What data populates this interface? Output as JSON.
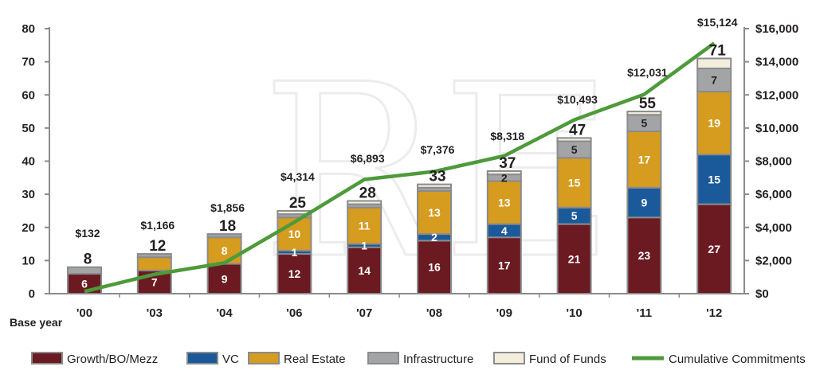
{
  "chart_data": {
    "type": "bar",
    "stacked": true,
    "categories": [
      "'00",
      "'03",
      "'04",
      "'06",
      "'07",
      "'08",
      "'09",
      "'10",
      "'11",
      "'12"
    ],
    "series": [
      {
        "name": "Growth/BO/Mezz",
        "color": "#6b1a22",
        "values": [
          6,
          7,
          9,
          12,
          14,
          16,
          17,
          21,
          23,
          27
        ]
      },
      {
        "name": "VC",
        "color": "#1a5a9a",
        "values": [
          0,
          0,
          0,
          1,
          1,
          2,
          4,
          5,
          9,
          15
        ]
      },
      {
        "name": "Real Estate",
        "color": "#d69c1f",
        "values": [
          0,
          4,
          8,
          10,
          11,
          13,
          13,
          15,
          17,
          19
        ]
      },
      {
        "name": "Infrastructure",
        "color": "#a3a4a6",
        "values": [
          2,
          1,
          1,
          1,
          1,
          1,
          2,
          5,
          5,
          7
        ]
      },
      {
        "name": "Fund of Funds",
        "color": "#f3eedc",
        "values": [
          0,
          0,
          0,
          1,
          1,
          1,
          1,
          1,
          1,
          3
        ]
      }
    ],
    "segment_labels": [
      [
        "6",
        "7",
        "9",
        "12",
        "14",
        "16",
        "17",
        "21",
        "23",
        "27"
      ],
      [
        "",
        "",
        "",
        "1",
        "1",
        "2",
        "4",
        "5",
        "9",
        "15"
      ],
      [
        "",
        "",
        "8",
        "10",
        "11",
        "13",
        "13",
        "15",
        "17",
        "19"
      ],
      [
        "",
        "",
        "",
        "",
        "",
        "",
        "2",
        "5",
        "5",
        "7"
      ],
      [
        "",
        "",
        "",
        "",
        "",
        "",
        "",
        "",
        "",
        ""
      ]
    ],
    "totals": [
      "8",
      "12",
      "18",
      "25",
      "28",
      "33",
      "37",
      "47",
      "55",
      "71"
    ],
    "line": {
      "name": "Cumulative Commitments",
      "color": "#4e9a3a",
      "values": [
        132,
        1166,
        1856,
        4314,
        6893,
        7376,
        8318,
        10493,
        12031,
        15124
      ],
      "labels": [
        "$132",
        "$1,166",
        "$1,856",
        "$4,314",
        "$6,893",
        "$7,376",
        "$8,318",
        "$10,493",
        "$12,031",
        "$15,124"
      ]
    },
    "y_left": {
      "ylim": [
        0,
        80
      ],
      "ticks": [
        "0",
        "10",
        "20",
        "30",
        "40",
        "50",
        "60",
        "70",
        "80"
      ]
    },
    "y_right": {
      "ylim": [
        0,
        16000
      ],
      "ticks": [
        "$0",
        "$2,000",
        "$4,000",
        "$6,000",
        "$8,000",
        "$10,000",
        "$12,000",
        "$14,000",
        "$16,000"
      ]
    },
    "xlabel": "Base year",
    "legend_position": "bottom",
    "grid": false
  },
  "watermark": "RE"
}
